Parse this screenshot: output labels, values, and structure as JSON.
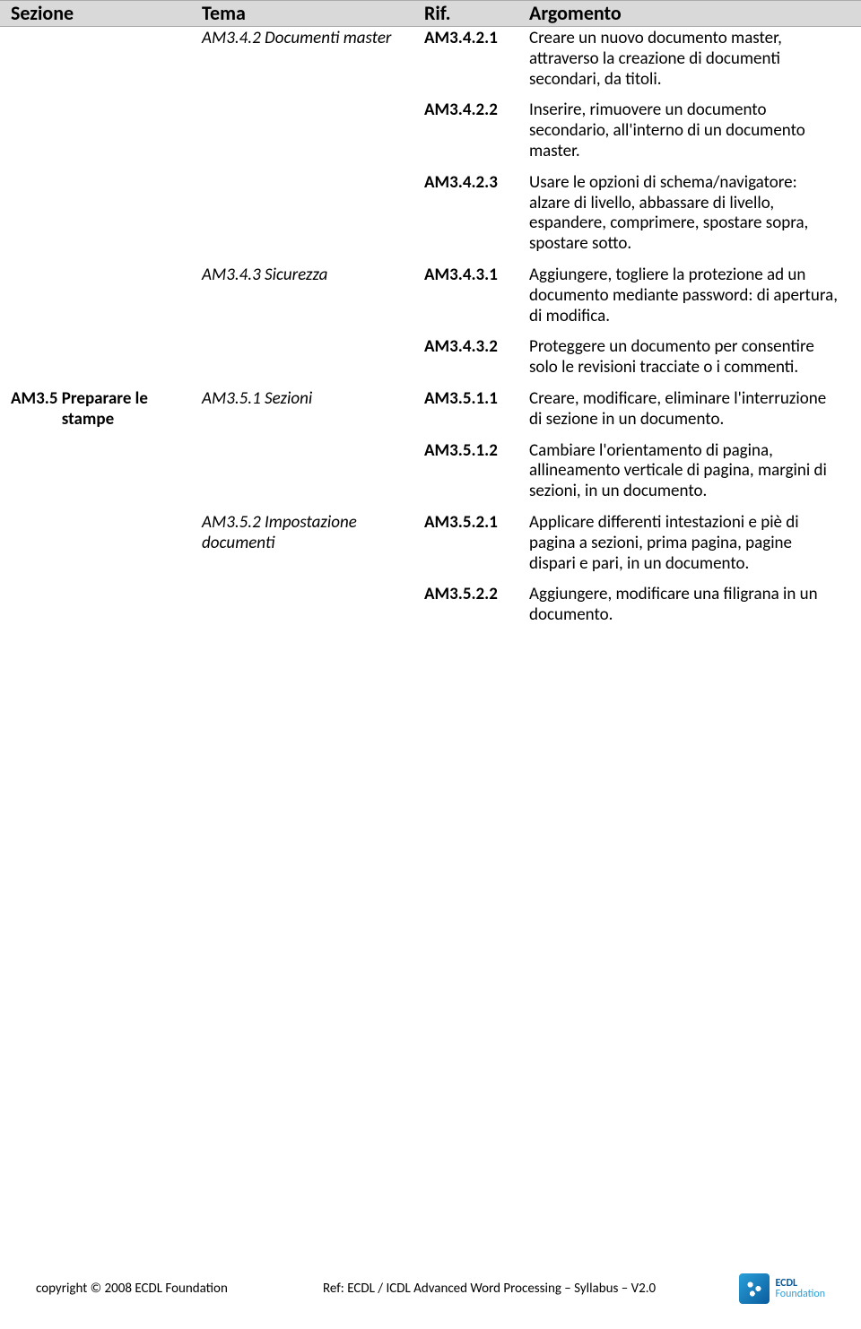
{
  "header": {
    "sezione": "Sezione",
    "tema": "Tema",
    "rif": "Rif.",
    "argomento": "Argomento"
  },
  "rows": [
    {
      "sezione": "",
      "tema": "AM3.4.2 Documenti master",
      "rif": "AM3.4.2.1",
      "argo": "Creare un nuovo documento master, attraverso la creazione di documenti secondari, da titoli."
    },
    {
      "sezione": "",
      "tema": "",
      "rif": "AM3.4.2.2",
      "argo": "Inserire, rimuovere un documento secondario, all'interno di un documento master."
    },
    {
      "sezione": "",
      "tema": "",
      "rif": "AM3.4.2.3",
      "argo": "Usare le opzioni di schema/navigatore: alzare di livello, abbassare di livello, espandere, comprimere, spostare sopra, spostare sotto."
    },
    {
      "sezione": "",
      "tema": "AM3.4.3 Sicurezza",
      "rif": "AM3.4.3.1",
      "argo": "Aggiungere, togliere la protezione ad un documento mediante password: di apertura, di modifica."
    },
    {
      "sezione": "",
      "tema": "",
      "rif": "AM3.4.3.2",
      "argo": "Proteggere un documento per consentire solo le revisioni tracciate o i commenti."
    },
    {
      "sezione": "AM3.5 Preparare le stampe",
      "tema": "AM3.5.1 Sezioni",
      "rif": "AM3.5.1.1",
      "argo": "Creare, modificare, eliminare l'interruzione di sezione in un documento."
    },
    {
      "sezione": "",
      "tema": "",
      "rif": "AM3.5.1.2",
      "argo": "Cambiare l'orientamento di pagina, allineamento verticale di pagina, margini di sezioni, in un documento."
    },
    {
      "sezione": "",
      "tema": "AM3.5.2 Impostazione documenti",
      "rif": "AM3.5.2.1",
      "argo": "Applicare differenti intestazioni e piè di pagina a sezioni, prima pagina, pagine dispari e pari, in un documento."
    },
    {
      "sezione": "",
      "tema": "",
      "rif": "AM3.5.2.2",
      "argo": "Aggiungere, modificare una filigrana in un documento."
    }
  ],
  "footer": {
    "copyright": "copyright © 2008 ECDL Foundation",
    "ref": "Ref: ECDL / ICDL Advanced Word Processing – Syllabus – V2.0",
    "logo_line1": "ECDL",
    "logo_line2": "Foundation"
  }
}
